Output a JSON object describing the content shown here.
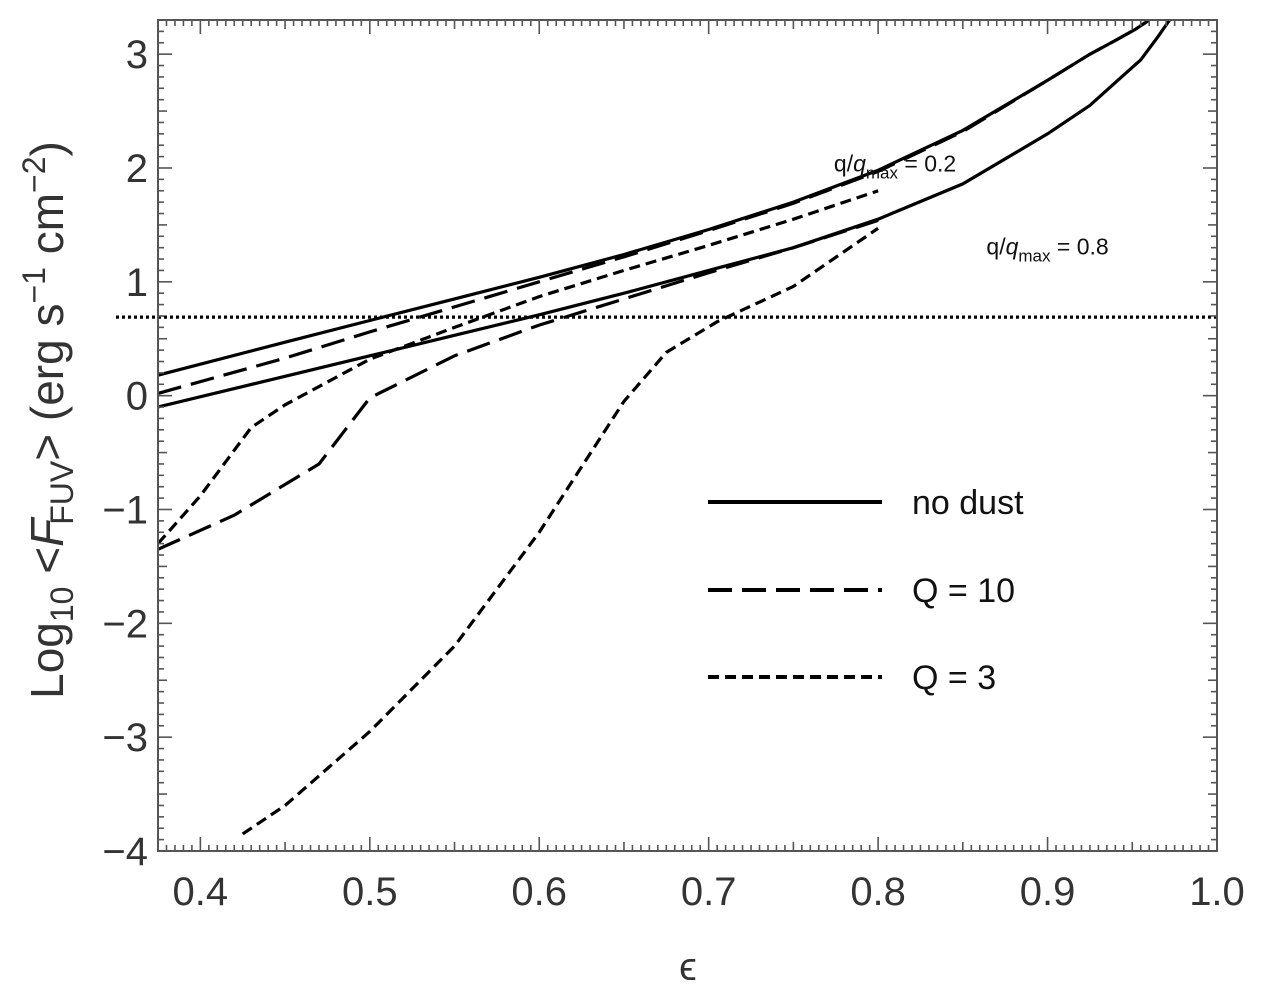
{
  "chart_data": {
    "type": "line",
    "title": "",
    "xlabel": "ϵ",
    "ylabel": {
      "prefix": "Log",
      "prefix_sub": "10",
      "open": " <",
      "var": "F",
      "var_sub": "FUV",
      "close": ">  (erg s",
      "exp1": "−1",
      "mid": " cm",
      "exp2": "−2",
      "end": ")"
    },
    "xlim": [
      0.375,
      1.0
    ],
    "ylim": [
      -4,
      3.3
    ],
    "x_ticks": [
      0.4,
      0.5,
      0.6,
      0.7,
      0.8,
      0.9,
      1.0
    ],
    "x_tick_labels": [
      "0.4",
      "0.5",
      "0.6",
      "0.7",
      "0.8",
      "0.9",
      "1.0"
    ],
    "y_ticks": [
      -4,
      -3,
      -2,
      -1,
      0,
      1,
      2,
      3
    ],
    "y_tick_labels": [
      "−4",
      "−3",
      "−2",
      "−1",
      "0",
      "1",
      "2",
      "3"
    ],
    "grid": false,
    "legend": {
      "position": "lower-right",
      "entries": [
        {
          "label": "no dust",
          "style": "solid"
        },
        {
          "label": "Q = 10",
          "style": "long-dash"
        },
        {
          "label": "Q = 3",
          "style": "short-dash"
        }
      ]
    },
    "reference_line": {
      "y": 0.69,
      "style": "dotted"
    },
    "annotations": [
      {
        "main": "q/",
        "var": "q",
        "sub": "max",
        "rest": " = 0.2",
        "x": 0.81,
        "y": 1.97
      },
      {
        "main": "q/",
        "var": "q",
        "sub": "max",
        "rest": " = 0.8",
        "x": 0.9,
        "y": 1.24
      }
    ],
    "series": [
      {
        "group": "q0.2",
        "style": "solid",
        "x": [
          0.375,
          0.45,
          0.5,
          0.55,
          0.6,
          0.65,
          0.7,
          0.75,
          0.8,
          0.85,
          0.9,
          0.925,
          0.94,
          0.952,
          0.96
        ],
        "y": [
          0.18,
          0.47,
          0.66,
          0.85,
          1.04,
          1.24,
          1.46,
          1.7,
          1.98,
          2.33,
          2.77,
          3.0,
          3.12,
          3.22,
          3.3
        ]
      },
      {
        "group": "q0.8",
        "style": "solid",
        "x": [
          0.375,
          0.45,
          0.5,
          0.55,
          0.6,
          0.65,
          0.7,
          0.75,
          0.8,
          0.85,
          0.9,
          0.925,
          0.94,
          0.955,
          0.965,
          0.972
        ],
        "y": [
          -0.1,
          0.17,
          0.35,
          0.53,
          0.71,
          0.9,
          1.1,
          1.3,
          1.55,
          1.86,
          2.3,
          2.55,
          2.75,
          2.95,
          3.15,
          3.3
        ]
      },
      {
        "group": "q0.2",
        "style": "long-dash",
        "x": [
          0.375,
          0.45,
          0.5,
          0.55,
          0.6,
          0.65,
          0.7,
          0.75,
          0.8,
          0.85,
          0.9,
          0.925,
          0.94,
          0.952,
          0.96
        ],
        "y": [
          0.02,
          0.33,
          0.56,
          0.78,
          1.0,
          1.22,
          1.45,
          1.69,
          1.97,
          2.32,
          2.77,
          3.0,
          3.12,
          3.22,
          3.3
        ]
      },
      {
        "group": "q0.8",
        "style": "long-dash",
        "x": [
          0.375,
          0.42,
          0.47,
          0.5,
          0.55,
          0.6,
          0.65,
          0.7,
          0.75,
          0.8
        ],
        "y": [
          -1.35,
          -1.05,
          -0.6,
          -0.02,
          0.35,
          0.62,
          0.85,
          1.08,
          1.3,
          1.54
        ]
      },
      {
        "group": "q0.2",
        "style": "short-dash",
        "x": [
          0.375,
          0.4,
          0.43,
          0.45,
          0.5,
          0.55,
          0.6,
          0.65,
          0.7,
          0.75,
          0.8
        ],
        "y": [
          -1.3,
          -0.88,
          -0.28,
          -0.08,
          0.32,
          0.6,
          0.87,
          1.1,
          1.32,
          1.55,
          1.8
        ]
      },
      {
        "group": "q0.8",
        "style": "short-dash",
        "x": [
          0.425,
          0.45,
          0.5,
          0.55,
          0.6,
          0.65,
          0.675,
          0.705,
          0.75,
          0.8
        ],
        "y": [
          -3.85,
          -3.6,
          -2.95,
          -2.2,
          -1.2,
          -0.05,
          0.38,
          0.65,
          0.96,
          1.47
        ]
      }
    ]
  }
}
